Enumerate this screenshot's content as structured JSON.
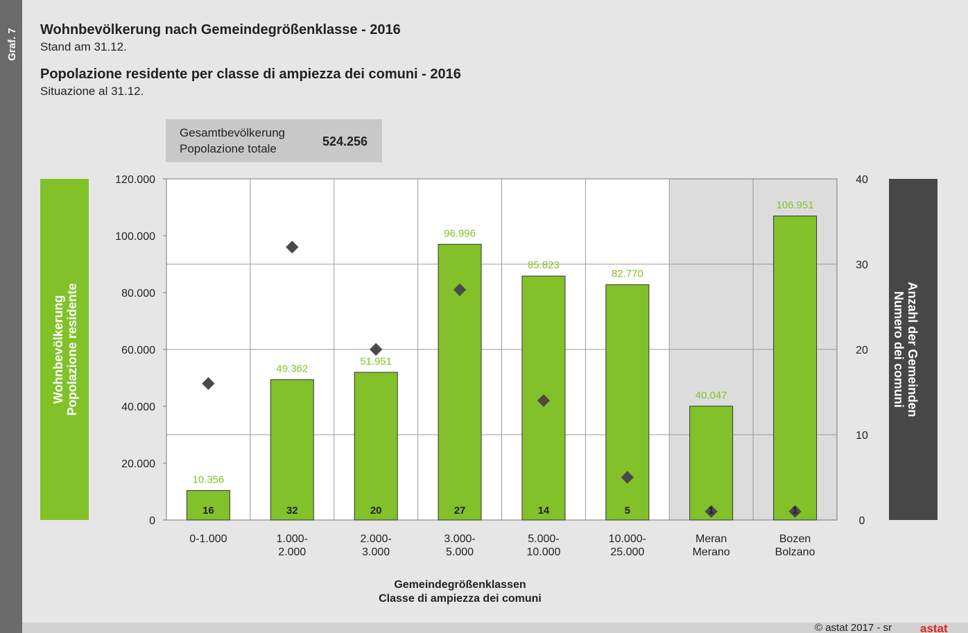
{
  "chart_data": {
    "type": "bar",
    "graph_label": "Graf. 7",
    "title": "Wohnbevölkerung nach Gemeindegrößenklasse - 2016",
    "subtitle": "Stand am 31.12.",
    "title2": "Popolazione residente per classe di ampiezza dei comuni - 2016",
    "subtitle2": "Situazione al 31.12.",
    "total": {
      "label": "Gesamtbevölkerung",
      "label2": "Popolazione totale",
      "value": 524256,
      "value_label": "524.256"
    },
    "categories": [
      "0-1.000",
      "1.000-\n2.000",
      "2.000-\n3.000",
      "3.000-\n5.000",
      "5.000-\n10.000",
      "10.000-\n25.000",
      "Meran\nMerano",
      "Bozen\nBolzano"
    ],
    "shaded": [
      false,
      false,
      false,
      false,
      false,
      false,
      true,
      true
    ],
    "series": [
      {
        "color": "#82c12a",
        "values": [
          10356,
          49362,
          51951,
          96996,
          85823,
          82770,
          40047,
          106951
        ],
        "value_labels": [
          "10.356",
          "49.362",
          "51.951",
          "96.996",
          "85.823",
          "82.770",
          "40.047",
          "106.951"
        ]
      },
      {
        "color": "#4a4a4a",
        "axis": "y2",
        "marker": "diamond",
        "values": [
          16,
          32,
          20,
          27,
          14,
          5,
          1,
          1
        ]
      }
    ],
    "ylim": [
      0,
      120000
    ],
    "yticks": [
      0,
      {
        "value": 20000,
        "label": "20.000"
      },
      {
        "value": 40000,
        "label": "40.000"
      },
      {
        "value": 60000,
        "label": "60.000"
      },
      {
        "value": 80000,
        "label": "80.000"
      },
      {
        "value": 100000,
        "label": "100.000"
      },
      {
        "value": 120000,
        "label": "120.000"
      }
    ],
    "y2lim": [
      0,
      40
    ],
    "y2ticks": [
      0,
      10,
      20,
      30,
      40
    ],
    "ylabel": "Wohnbevölkerung\nPopolazione residente",
    "y2label": "Anzahl der Gemeinden\nNumero dei comuni",
    "xlabel": "Gemeindegrößenklassen\nClasse di ampiezza dei comuni",
    "copyright": "© astat 2017 - sr",
    "logo": "astat"
  }
}
